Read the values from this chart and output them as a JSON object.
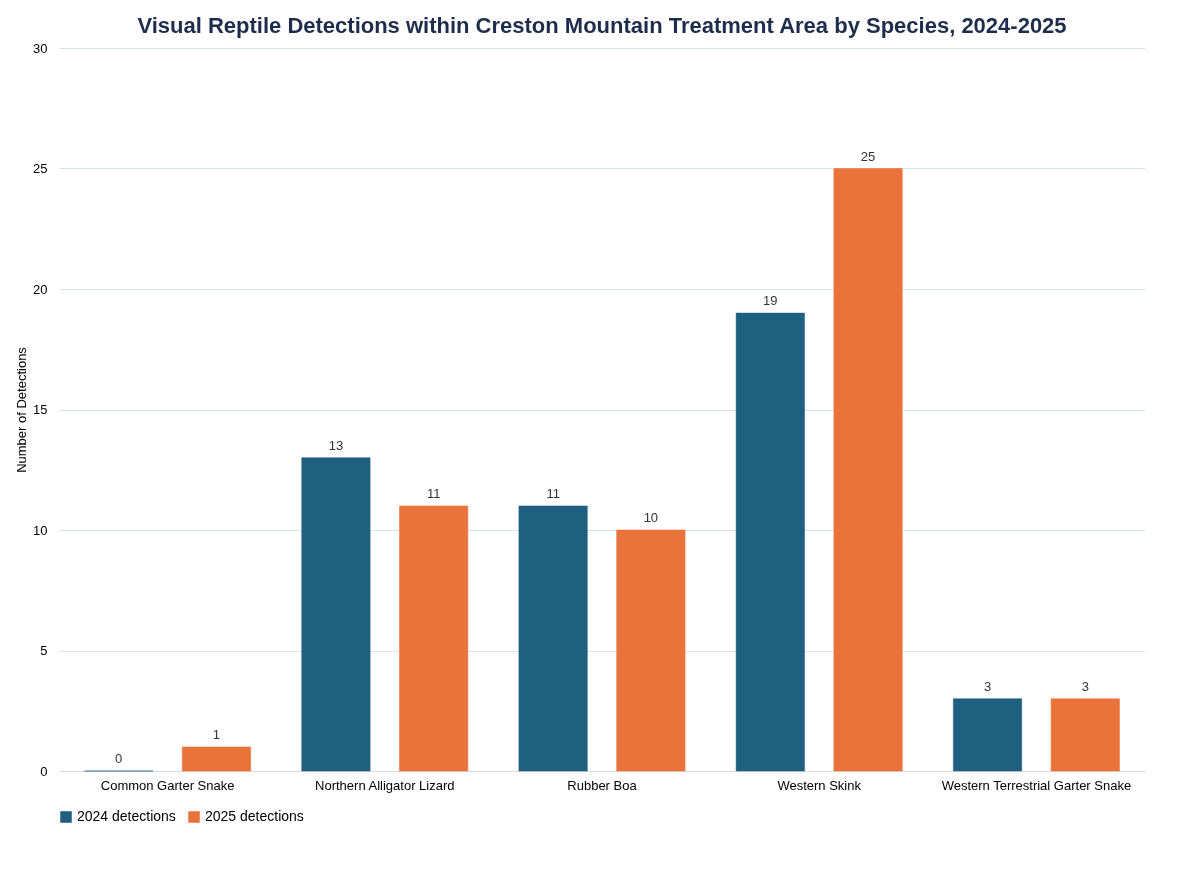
{
  "chart_data": {
    "type": "bar",
    "title": "Visual Reptile Detections within Creston Mountain Treatment Area by Species, 2024-2025",
    "ylabel": "Number of Detections",
    "categories": [
      "Common Garter Snake",
      "Northern Alligator Lizard",
      "Rubber Boa",
      "Western Skink",
      "Western Terrestrial Garter Snake"
    ],
    "series": [
      {
        "name": "2024 detections",
        "color": "#1f5f80",
        "values": [
          0,
          13,
          11,
          19,
          3
        ]
      },
      {
        "name": "2025 detections",
        "color": "#e9733a",
        "values": [
          1,
          11,
          10,
          25,
          3
        ]
      }
    ],
    "ylim": [
      0,
      30
    ],
    "yticks": [
      0,
      5,
      10,
      15,
      20,
      25,
      30
    ],
    "grid": "y",
    "legend": "bottom",
    "data_labels": true
  }
}
